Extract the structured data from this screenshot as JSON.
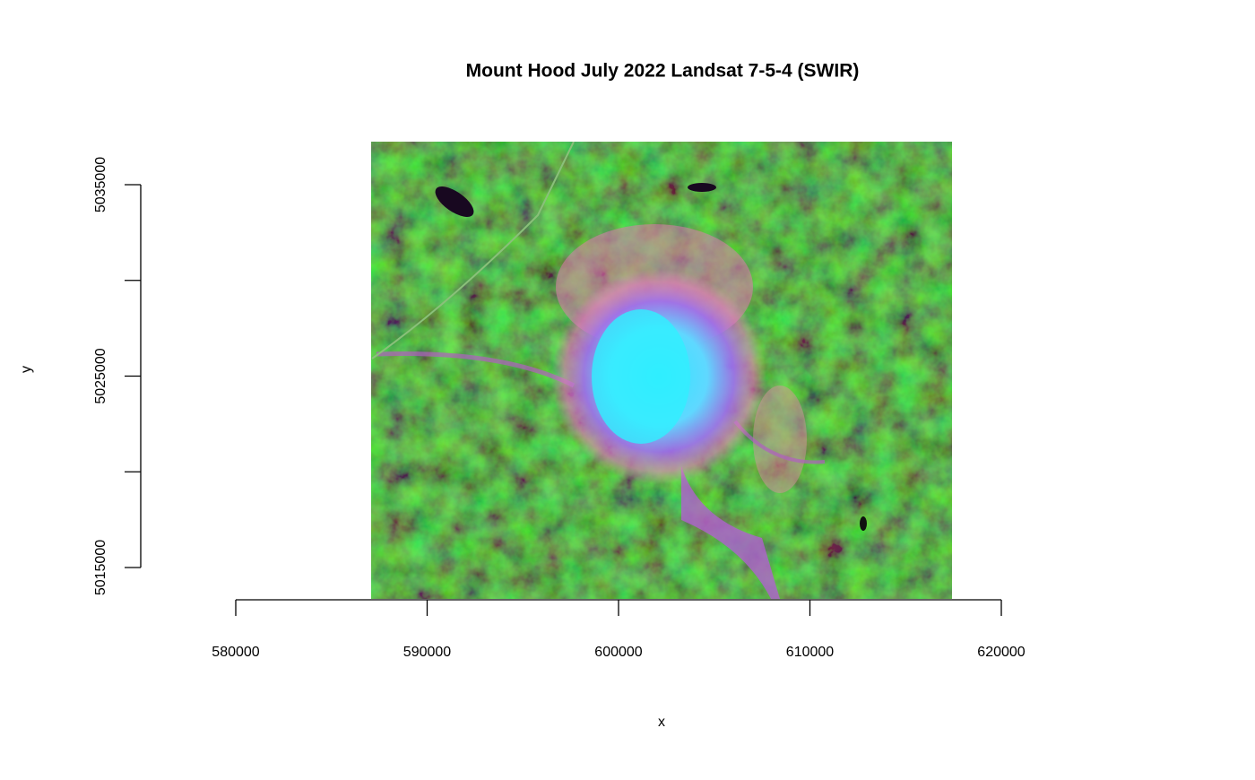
{
  "chart_data": {
    "type": "raster",
    "title": "Mount Hood July 2022 Landsat 7-5-4 (SWIR)",
    "xlabel": "x",
    "ylabel": "y",
    "xlim": [
      580000,
      620000
    ],
    "ylim": [
      5015000,
      5035000
    ],
    "xticks": [
      580000,
      590000,
      600000,
      610000,
      620000
    ],
    "yticks": [
      5015000,
      {
        "value": 5020000,
        "label": null
      },
      5025000,
      {
        "value": 5030000,
        "label": null
      },
      5035000
    ]
  }
}
